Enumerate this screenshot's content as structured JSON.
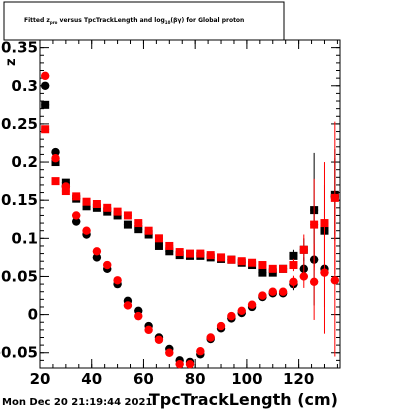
{
  "chart_data": {
    "type": "scatter",
    "title_parts": {
      "pre": "Fitted  z",
      "sub1": "pro",
      "mid": "  versus TpcTrackLength and log",
      "sub2": "10",
      "post": "(βγ) for Global proton"
    },
    "ylabel": "z",
    "xlabel": "TpcTrackLength (cm)",
    "timestamp": "Mon Dec 20 21:19:44 2021",
    "xlim": [
      20,
      136
    ],
    "ylim": [
      -0.07,
      0.36
    ],
    "xticks": [
      20,
      40,
      60,
      80,
      100,
      120
    ],
    "yticks": [
      -0.05,
      0,
      0.05,
      0.1,
      0.15,
      0.2,
      0.25,
      0.3,
      0.35
    ],
    "ytick_labels": [
      "-0.05",
      "0",
      "0.05",
      "0.1",
      "0.15",
      "0.2",
      "0.25",
      "0.3",
      "0.35"
    ],
    "series": [
      {
        "marker": "square",
        "color": "#000000",
        "x": [
          22,
          26,
          30,
          34,
          38,
          42,
          46,
          50,
          54,
          58,
          62,
          66,
          70,
          74,
          78,
          82,
          86,
          90,
          94,
          98,
          102,
          106,
          110,
          114,
          118,
          122,
          126,
          130,
          134
        ],
        "y": [
          0.275,
          0.2,
          0.173,
          0.152,
          0.142,
          0.14,
          0.135,
          0.13,
          0.118,
          0.112,
          0.105,
          0.09,
          0.083,
          0.078,
          0.077,
          0.077,
          0.075,
          0.073,
          0.072,
          0.068,
          0.065,
          0.055,
          0.055,
          0.06,
          0.077,
          0.085,
          0.137,
          0.11,
          0.157
        ],
        "err": [
          0.003,
          0.003,
          0.003,
          0.003,
          0.003,
          0.003,
          0.003,
          0.003,
          0.003,
          0.003,
          0.003,
          0.003,
          0.003,
          0.003,
          0.003,
          0.003,
          0.003,
          0.003,
          0.003,
          0.003,
          0.003,
          0.004,
          0.004,
          0.005,
          0.008,
          0.015,
          0.075,
          0.06,
          0.06
        ]
      },
      {
        "marker": "circle",
        "color": "#000000",
        "x": [
          22,
          26,
          30,
          34,
          38,
          42,
          46,
          50,
          54,
          58,
          62,
          66,
          70,
          74,
          78,
          82,
          86,
          90,
          94,
          98,
          102,
          106,
          110,
          114,
          118,
          122,
          126,
          130,
          134
        ],
        "y": [
          0.3,
          0.213,
          0.168,
          0.122,
          0.105,
          0.075,
          0.06,
          0.04,
          0.018,
          0.005,
          -0.015,
          -0.03,
          -0.045,
          -0.06,
          -0.062,
          -0.052,
          -0.032,
          -0.018,
          -0.005,
          0.002,
          0.01,
          0.023,
          0.028,
          0.028,
          0.04,
          0.06,
          0.072,
          0.06,
          0.155
        ],
        "err": [
          0.003,
          0.003,
          0.003,
          0.003,
          0.003,
          0.003,
          0.003,
          0.003,
          0.003,
          0.003,
          0.003,
          0.003,
          0.003,
          0.003,
          0.003,
          0.003,
          0.003,
          0.003,
          0.003,
          0.003,
          0.003,
          0.004,
          0.004,
          0.005,
          0.008,
          0.015,
          0.06,
          0.05,
          0.05
        ]
      },
      {
        "marker": "square",
        "color": "#ff0000",
        "x": [
          22,
          26,
          30,
          34,
          38,
          42,
          46,
          50,
          54,
          58,
          62,
          66,
          70,
          74,
          78,
          82,
          86,
          90,
          94,
          98,
          102,
          106,
          110,
          114,
          118,
          122,
          126,
          130,
          134
        ],
        "y": [
          0.243,
          0.175,
          0.162,
          0.155,
          0.148,
          0.145,
          0.14,
          0.135,
          0.13,
          0.12,
          0.11,
          0.1,
          0.09,
          0.082,
          0.08,
          0.08,
          0.078,
          0.075,
          0.072,
          0.07,
          0.068,
          0.065,
          0.06,
          0.06,
          0.065,
          0.085,
          0.118,
          0.12,
          0.153
        ],
        "err": [
          0.003,
          0.003,
          0.003,
          0.003,
          0.003,
          0.003,
          0.003,
          0.003,
          0.003,
          0.003,
          0.003,
          0.003,
          0.003,
          0.003,
          0.003,
          0.003,
          0.003,
          0.003,
          0.003,
          0.003,
          0.003,
          0.004,
          0.004,
          0.005,
          0.008,
          0.02,
          0.06,
          0.08,
          0.1
        ]
      },
      {
        "marker": "circle",
        "color": "#ff0000",
        "x": [
          22,
          26,
          30,
          34,
          38,
          42,
          46,
          50,
          54,
          58,
          62,
          66,
          70,
          74,
          78,
          82,
          86,
          90,
          94,
          98,
          102,
          106,
          110,
          114,
          118,
          122,
          126,
          130,
          134
        ],
        "y": [
          0.313,
          0.205,
          0.168,
          0.13,
          0.11,
          0.083,
          0.065,
          0.045,
          0.012,
          -0.002,
          -0.02,
          -0.033,
          -0.05,
          -0.065,
          -0.065,
          -0.048,
          -0.03,
          -0.015,
          -0.002,
          0.005,
          0.013,
          0.025,
          0.03,
          0.03,
          0.043,
          0.05,
          0.043,
          0.055,
          0.045
        ],
        "err": [
          0.003,
          0.003,
          0.003,
          0.003,
          0.003,
          0.003,
          0.003,
          0.003,
          0.003,
          0.003,
          0.003,
          0.003,
          0.003,
          0.003,
          0.003,
          0.003,
          0.003,
          0.003,
          0.003,
          0.003,
          0.003,
          0.004,
          0.004,
          0.005,
          0.008,
          0.015,
          0.05,
          0.08,
          0.1
        ]
      }
    ]
  }
}
